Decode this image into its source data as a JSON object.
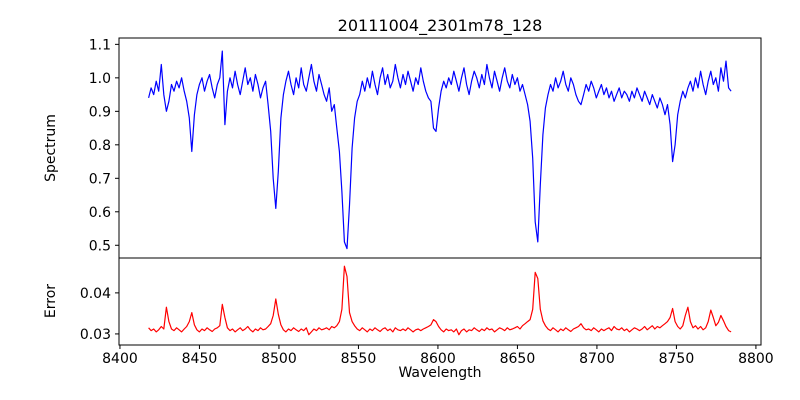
{
  "title": "20111004_2301m78_128",
  "chart_data": {
    "type": "line",
    "title": "20111004_2301m78_128",
    "xlabel": "Wavelength",
    "grid": false,
    "legend": null,
    "xlim": [
      8399.4,
      8803.2
    ],
    "xticks": [
      8400,
      8450,
      8500,
      8550,
      8600,
      8650,
      8700,
      8750,
      8800
    ],
    "xtick_labels": [
      "8400",
      "8450",
      "8500",
      "8550",
      "8600",
      "8650",
      "8700",
      "8750",
      "8800"
    ],
    "panels": [
      {
        "name": "spectrum",
        "ylabel": "Spectrum",
        "color": "#0000ff",
        "ylim": [
          0.462,
          1.119
        ],
        "ytick_values": [
          0.5,
          0.6,
          0.7,
          0.8,
          0.9,
          1.0,
          1.1
        ],
        "ytick_labels": [
          "0.5",
          "0.6",
          "0.7",
          "0.8",
          "0.9",
          "1.0",
          "1.1"
        ],
        "x_start": 8418,
        "x_step": 1.6,
        "values": [
          0.94,
          0.97,
          0.95,
          0.99,
          0.96,
          1.04,
          0.95,
          0.9,
          0.93,
          0.98,
          0.96,
          0.99,
          0.97,
          1.0,
          0.96,
          0.93,
          0.88,
          0.78,
          0.89,
          0.95,
          0.98,
          1.0,
          0.96,
          0.99,
          1.01,
          0.97,
          0.94,
          0.98,
          1.0,
          1.08,
          0.86,
          0.96,
          1.0,
          0.97,
          1.02,
          0.98,
          0.95,
          0.99,
          1.03,
          0.98,
          1.0,
          0.96,
          1.01,
          0.98,
          0.94,
          0.97,
          0.99,
          0.92,
          0.84,
          0.7,
          0.61,
          0.72,
          0.88,
          0.95,
          0.99,
          1.02,
          0.98,
          0.95,
          1.0,
          0.97,
          1.03,
          0.98,
          0.96,
          1.0,
          1.04,
          0.99,
          0.96,
          1.01,
          0.98,
          0.95,
          0.93,
          0.97,
          0.9,
          0.92,
          0.85,
          0.78,
          0.66,
          0.51,
          0.49,
          0.62,
          0.79,
          0.88,
          0.93,
          0.95,
          0.99,
          0.96,
          1.0,
          0.97,
          1.02,
          0.98,
          0.95,
          1.0,
          1.03,
          0.98,
          1.01,
          0.97,
          0.99,
          1.04,
          1.0,
          0.97,
          1.01,
          0.98,
          1.02,
          0.99,
          0.96,
          1.0,
          0.98,
          1.03,
          0.99,
          0.96,
          0.94,
          0.93,
          0.85,
          0.84,
          0.91,
          0.96,
          0.99,
          0.97,
          1.0,
          0.98,
          1.02,
          0.99,
          0.96,
          1.0,
          1.03,
          0.98,
          0.95,
          0.99,
          1.02,
          1.0,
          0.97,
          1.01,
          0.98,
          1.04,
          1.0,
          0.97,
          1.02,
          0.99,
          0.96,
          1.0,
          1.03,
          0.99,
          0.97,
          1.01,
          0.98,
          1.0,
          0.96,
          0.98,
          0.95,
          0.92,
          0.87,
          0.76,
          0.57,
          0.51,
          0.68,
          0.83,
          0.91,
          0.95,
          0.98,
          0.96,
          1.0,
          0.97,
          0.99,
          1.02,
          0.98,
          0.96,
          1.0,
          0.98,
          0.95,
          0.93,
          0.92,
          0.95,
          0.98,
          0.96,
          0.99,
          0.97,
          0.94,
          0.96,
          0.98,
          0.95,
          0.97,
          0.94,
          0.96,
          0.93,
          0.95,
          0.97,
          0.94,
          0.96,
          0.95,
          0.93,
          0.96,
          0.94,
          0.97,
          0.95,
          0.93,
          0.96,
          0.94,
          0.92,
          0.95,
          0.93,
          0.91,
          0.94,
          0.92,
          0.89,
          0.92,
          0.86,
          0.75,
          0.8,
          0.89,
          0.93,
          0.96,
          0.94,
          0.97,
          0.99,
          0.96,
          1.0,
          0.97,
          1.02,
          0.98,
          0.95,
          0.99,
          1.02,
          0.98,
          1.0,
          0.96,
          1.03,
          0.99,
          1.05,
          0.97,
          0.96
        ]
      },
      {
        "name": "error",
        "ylabel": "Error",
        "color": "#ff0000",
        "ylim": [
          0.0273,
          0.0485
        ],
        "ytick_values": [
          0.03,
          0.04
        ],
        "ytick_labels": [
          "0.03",
          "0.04"
        ],
        "x_start": 8418,
        "x_step": 1.6,
        "values": [
          0.0315,
          0.0308,
          0.0312,
          0.0305,
          0.031,
          0.0318,
          0.0312,
          0.0365,
          0.033,
          0.0312,
          0.0308,
          0.0315,
          0.031,
          0.0305,
          0.0312,
          0.0318,
          0.033,
          0.0352,
          0.0322,
          0.031,
          0.0305,
          0.0312,
          0.0308,
          0.0315,
          0.031,
          0.0306,
          0.0312,
          0.0315,
          0.032,
          0.0372,
          0.034,
          0.0315,
          0.0308,
          0.0312,
          0.0305,
          0.031,
          0.0315,
          0.0308,
          0.0312,
          0.0318,
          0.031,
          0.0305,
          0.0312,
          0.0308,
          0.0315,
          0.031,
          0.0312,
          0.0318,
          0.0325,
          0.0345,
          0.0385,
          0.0348,
          0.0322,
          0.031,
          0.0305,
          0.0312,
          0.0308,
          0.0315,
          0.031,
          0.0306,
          0.0312,
          0.0308,
          0.0315,
          0.0298,
          0.0305,
          0.0312,
          0.0308,
          0.0315,
          0.031,
          0.0312,
          0.0315,
          0.031,
          0.0318,
          0.0315,
          0.032,
          0.033,
          0.036,
          0.0465,
          0.044,
          0.0352,
          0.033,
          0.032,
          0.0312,
          0.0308,
          0.0315,
          0.031,
          0.0305,
          0.0312,
          0.0308,
          0.0315,
          0.031,
          0.0306,
          0.0312,
          0.0315,
          0.0308,
          0.0312,
          0.0305,
          0.0315,
          0.031,
          0.0308,
          0.0312,
          0.0308,
          0.0315,
          0.031,
          0.0305,
          0.031,
          0.0312,
          0.0308,
          0.0312,
          0.0315,
          0.0318,
          0.0322,
          0.0335,
          0.033,
          0.0318,
          0.031,
          0.0305,
          0.0312,
          0.0308,
          0.031,
          0.0305,
          0.0312,
          0.0298,
          0.0308,
          0.0312,
          0.0305,
          0.031,
          0.0308,
          0.0315,
          0.031,
          0.0306,
          0.0312,
          0.0308,
          0.0315,
          0.031,
          0.0312,
          0.0305,
          0.031,
          0.0315,
          0.0312,
          0.0308,
          0.0315,
          0.031,
          0.0312,
          0.0315,
          0.0318,
          0.0312,
          0.032,
          0.0325,
          0.033,
          0.0335,
          0.036,
          0.045,
          0.0435,
          0.036,
          0.0332,
          0.032,
          0.0312,
          0.0308,
          0.0315,
          0.031,
          0.0305,
          0.0312,
          0.0308,
          0.0315,
          0.031,
          0.0306,
          0.0312,
          0.0315,
          0.0318,
          0.0325,
          0.0315,
          0.031,
          0.0312,
          0.0308,
          0.0315,
          0.031,
          0.0305,
          0.0312,
          0.0308,
          0.0312,
          0.0315,
          0.0308,
          0.0318,
          0.0312,
          0.031,
          0.0315,
          0.0308,
          0.0312,
          0.0305,
          0.031,
          0.0315,
          0.0312,
          0.0308,
          0.0312,
          0.0318,
          0.031,
          0.0315,
          0.032,
          0.0312,
          0.0318,
          0.0315,
          0.032,
          0.0325,
          0.033,
          0.034,
          0.0362,
          0.033,
          0.0318,
          0.0312,
          0.032,
          0.0345,
          0.0365,
          0.033,
          0.0315,
          0.032,
          0.0312,
          0.0318,
          0.031,
          0.0315,
          0.033,
          0.0358,
          0.034,
          0.032,
          0.0328,
          0.0345,
          0.0332,
          0.0318,
          0.0308,
          0.0305
        ]
      }
    ]
  },
  "colors": {
    "spectrum_line": "#0000ff",
    "error_line": "#ff0000",
    "axis": "#000000",
    "background": "#ffffff"
  }
}
